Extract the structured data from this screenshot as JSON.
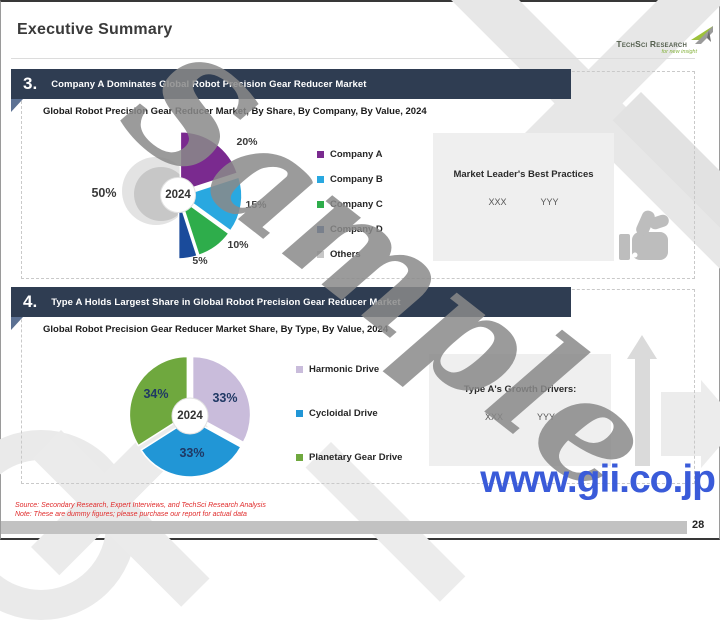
{
  "header": {
    "title": "Executive Summary",
    "logo": {
      "name": "TechSci Research",
      "tagline": "for new insight"
    }
  },
  "sections": [
    {
      "number": "3.",
      "headline": "Company A Dominates Global Robot Precision Gear Reducer Market",
      "info_box": {
        "title": "Market Leader's Best Practices",
        "col1": "XXX",
        "col2": "YYY"
      }
    },
    {
      "number": "4.",
      "headline": "Type A Holds Largest Share in Global Robot Precision Gear Reducer Market",
      "info_box": {
        "title": "Type A's Growth Drivers:",
        "col1": "XXX",
        "col2": "YYY"
      }
    }
  ],
  "chart_data": [
    {
      "type": "pie",
      "style": "exploded-half-donut",
      "title": "Global Robot Precision Gear Reducer Market, By Share, By Company, By Value, 2024",
      "center_label": "2024",
      "legend_position": "right",
      "series": [
        {
          "name": "Company A",
          "value": 20,
          "color": "#7a2a8f"
        },
        {
          "name": "Company B",
          "value": 15,
          "color": "#29a8e0"
        },
        {
          "name": "Company C",
          "value": 10,
          "color": "#2ead4b"
        },
        {
          "name": "Company D",
          "value": 5,
          "color": "#1a4b9b"
        },
        {
          "name": "Others",
          "value": 50,
          "color": "#c7c7c7"
        }
      ]
    },
    {
      "type": "pie",
      "style": "exploded-donut",
      "title": "Global Robot Precision Gear Reducer Market Share, By Type, By Value, 2024",
      "center_label": "2024",
      "legend_position": "right",
      "series": [
        {
          "name": "Harmonic Drive",
          "value": 33,
          "color": "#c9bcdb"
        },
        {
          "name": "Cycloidal Drive",
          "value": 33,
          "color": "#2196d6"
        },
        {
          "name": "Planetary Gear Drive",
          "value": 34,
          "color": "#6fa83e"
        }
      ]
    }
  ],
  "watermark": "Sample",
  "site_watermark": "www.gii.co.jp",
  "footer": {
    "source": "Source: Secondary Research, Expert Interviews, and TechSci Research Analysis",
    "note": "Note: These are dummy figures; please purchase our report for actual data",
    "page": "28"
  }
}
